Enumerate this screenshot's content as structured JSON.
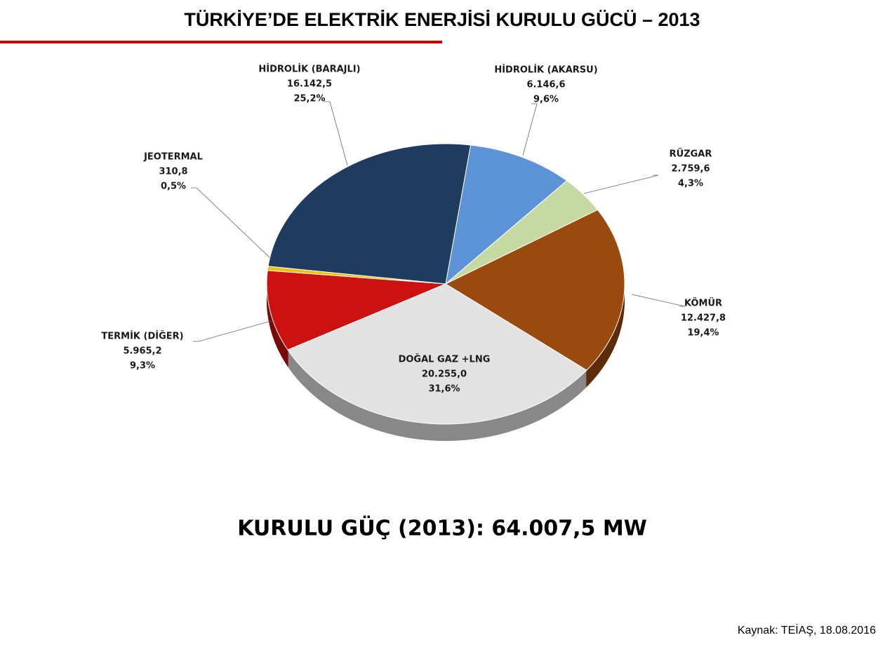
{
  "chart_data": {
    "type": "pie",
    "title": "TÜRKİYE’DE ELEKTRİK ENERJİSİ KURULU GÜCÜ – 2013",
    "categories": [
      "HİDROLİK (AKARSU)",
      "RÜZGAR",
      "KÖMÜR",
      "DOĞAL GAZ +LNG",
      "TERMİK (DİĞER)",
      "JEOTERMAL",
      "HİDROLİK (BARAJLI)"
    ],
    "values": [
      6146.6,
      2759.6,
      12427.8,
      20255.0,
      5965.2,
      310.8,
      16142.5
    ],
    "value_labels": [
      "6.146,6",
      "2.759,6",
      "12.427,8",
      "20.255,0",
      "5.965,2",
      "310,8",
      "16.142,5"
    ],
    "percents": [
      9.6,
      4.3,
      19.4,
      31.6,
      9.3,
      0.5,
      25.2
    ],
    "percent_labels": [
      "9,6%",
      "4,3%",
      "19,4%",
      "31,6%",
      "9,3%",
      "0,5%",
      "25,2%"
    ],
    "colors": [
      "#5b93d6",
      "#c6d9a0",
      "#9a4a0e",
      "#e2e2e2",
      "#cc1111",
      "#f2c200",
      "#1f3b60"
    ],
    "total_label": "KURULU GÜÇ (2013): 64.007,5 MW",
    "source": "Kaynak: TEİAŞ, 18.08.2016"
  }
}
